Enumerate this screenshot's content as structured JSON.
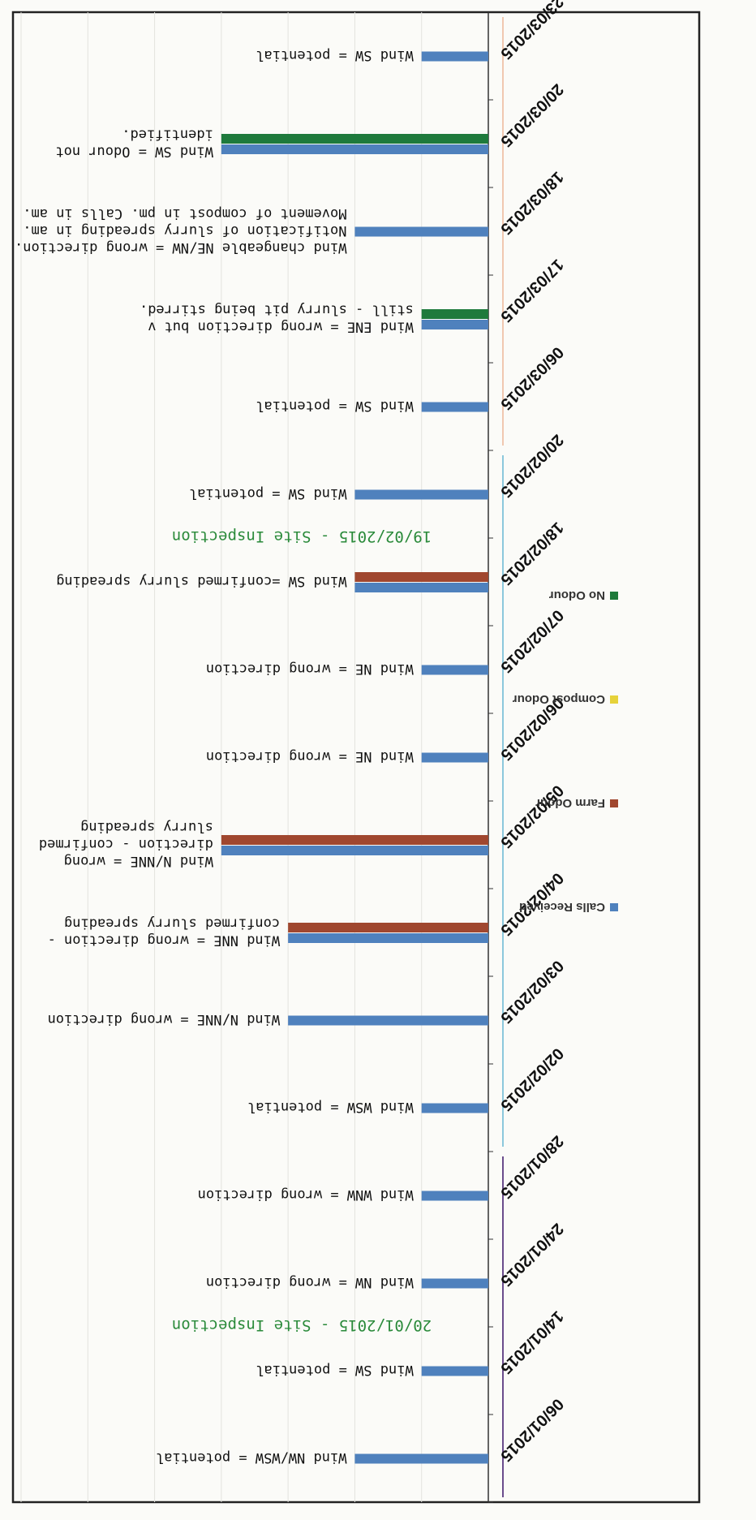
{
  "chart_data": {
    "type": "bar",
    "orientation": "rotated-180",
    "ylim": [
      0,
      7
    ],
    "yticks": [
      "0",
      "1",
      "2",
      "3",
      "4",
      "5",
      "6",
      "7"
    ],
    "grid": true,
    "legend_position": "bottom",
    "categories": [
      "06/01/2015",
      "14/01/2015",
      "24/01/2015",
      "28/01/2015",
      "02/02/2015",
      "03/02/2015",
      "04/02/2015",
      "05/02/2015",
      "06/02/2015",
      "07/02/2015",
      "18/02/2015",
      "20/02/2015",
      "06/03/2015",
      "17/03/2015",
      "18/03/2015",
      "20/03/2015",
      "23/03/2015"
    ],
    "series": [
      {
        "name": "Calls Received",
        "color": "#4f81bd",
        "values": [
          2,
          1,
          1,
          1,
          1,
          3,
          3,
          4,
          1,
          1,
          2,
          2,
          1,
          1,
          2,
          4,
          1
        ]
      },
      {
        "name": "Farm Odour",
        "color": "#a0472f",
        "values": [
          0,
          0,
          0,
          0,
          0,
          0,
          3,
          4,
          0,
          0,
          2,
          0,
          0,
          0,
          0,
          0,
          0
        ]
      },
      {
        "name": "Compost Odour",
        "color": "#e6d23a",
        "values": [
          0,
          0,
          0,
          0,
          0,
          0,
          0,
          0,
          0,
          0,
          0,
          0,
          0,
          0,
          0,
          0,
          0
        ]
      },
      {
        "name": "No Odour",
        "color": "#1e7a3c",
        "values": [
          0,
          0,
          0,
          0,
          0,
          0,
          0,
          0,
          0,
          0,
          0,
          0,
          0,
          1,
          0,
          4,
          0
        ]
      }
    ],
    "annotations": [
      [
        "Wind NW/WSW = potential"
      ],
      [
        "Wind SW = potential"
      ],
      [
        "Wind NW = wrong direction"
      ],
      [
        "Wind WNW = wrong direction"
      ],
      [
        "Wind WSW = potential"
      ],
      [
        "Wind N/NNE = wrong direction"
      ],
      [
        "Wind NNE = wrong direction -",
        "confirmed slurry spreading"
      ],
      [
        "Wind N/NNE = wrong",
        "direction - confirmed",
        "slurry  spreading"
      ],
      [
        "Wind NE = wrong direction"
      ],
      [
        "Wind NE = wrong direction"
      ],
      [
        "Wind SW =confirmed slurry spreading"
      ],
      [
        "Wind SW = potential"
      ],
      [
        "Wind SW = potential"
      ],
      [
        "Wind ENE = wrong direction but v",
        "still - slurry pit being stirred."
      ],
      [
        "Wind changeable NE/NW = wrong direction.",
        "Notification of slurry spreading in am.",
        "Movement of compost in pm.  Calls in am."
      ],
      [
        "Wind SW = Odour not",
        "identified."
      ],
      [
        "Wind SW = potential"
      ]
    ],
    "inspections": [
      "20/01/2015 - Site Inspection",
      "19/02/2015 - Site Inspection"
    ],
    "inspection_color": "#2a8a3a",
    "period_colors": [
      "#6a4c8c",
      "#8cc8dc",
      "#f0c8b0"
    ]
  }
}
